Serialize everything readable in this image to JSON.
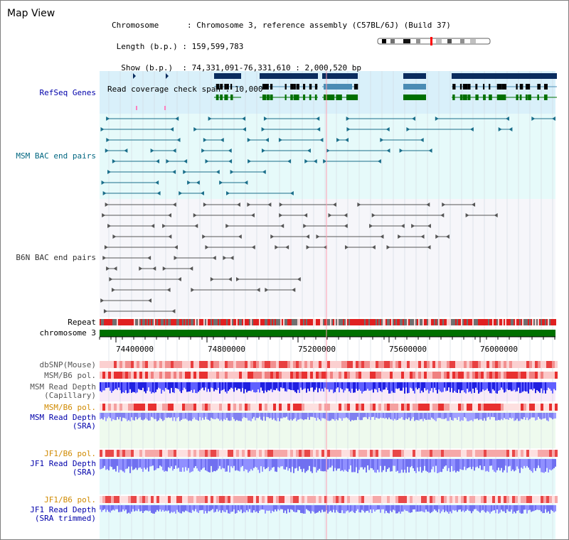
{
  "header": {
    "title": "Map View",
    "info_lines": [
      "Chromosome      : Chromosome 3, reference assembly (C57BL/6J) (Build 37)",
      " Length (b.p.) : 159,599,783",
      "  Show (b.p.)  : 74,331,091-76,331,610 : 2,000,520 bp",
      "Read coverage check span : 10,000"
    ]
  },
  "tracks": {
    "refseq": "RefSeq Genes",
    "msm_bac": "MSM BAC end pairs",
    "b6n_bac": "B6N BAC end pairs",
    "repeat": "Repeat",
    "chromosome": "chromosome 3",
    "dbsnp": "dbSNP(Mouse)",
    "msm_b6_pol_1": "MSM/B6 pol.",
    "msm_depth_cap_1": "MSM Read Depth",
    "msm_depth_cap_2": "(Capillary)",
    "msm_b6_pol_2": "MSM/B6 pol.",
    "msm_depth_sra_1": "MSM Read Depth",
    "msm_depth_sra_2": "(SRA)",
    "jf1_b6_pol_1": "JF1/B6 pol.",
    "jf1_depth_sra_1": "JF1 Read Depth",
    "jf1_depth_sra_2": "(SRA)",
    "jf1_b6_pol_2": "JF1/B6 pol.",
    "jf1_depth_trim_1": "JF1 Read Depth",
    "jf1_depth_trim_2": "(SRA trimmed)"
  },
  "axis": {
    "ticks": [
      "74400000",
      "74800000",
      "75200000",
      "75600000",
      "76000000"
    ]
  },
  "colors": {
    "refseq_bg": "#d9f0fa",
    "bac_bg": "#e6fafa",
    "gene_dark": "#0a2c5e",
    "gene_mid": "#4a8cb4",
    "gene_green": "#007000",
    "msm_bac": "#1a6e8a",
    "b6n_bac": "#555555",
    "chromosome": "#007000",
    "label_blue": "#0000aa",
    "label_teal": "#006680",
    "label_orange": "#d08a00",
    "label_gray": "#333333"
  }
}
